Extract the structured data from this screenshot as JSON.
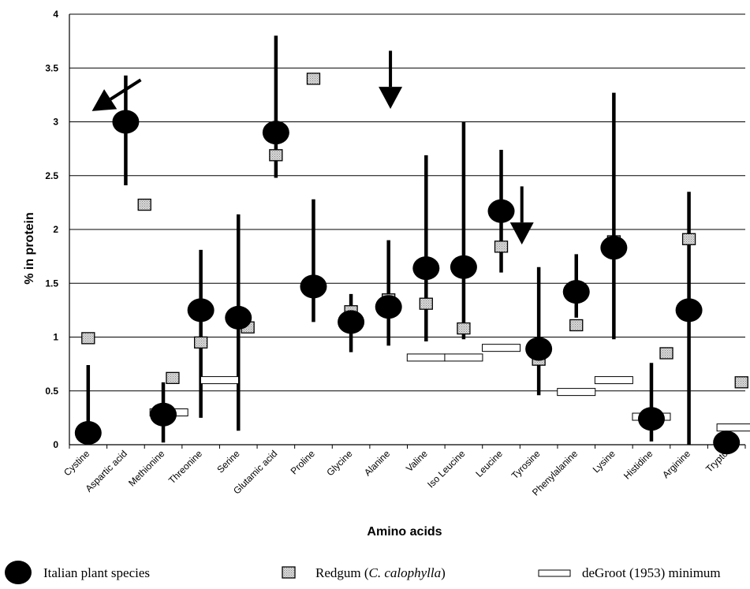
{
  "chart_data": {
    "type": "scatter",
    "xlabel": "Amino acids",
    "ylabel": "% in protein",
    "ylim": [
      0,
      4
    ],
    "yticks": [
      "0",
      "0.5",
      "1",
      "1.5",
      "2",
      "2.5",
      "3",
      "3.5",
      "4"
    ],
    "grid": "horizontal",
    "legend_position": "bottom",
    "categories": [
      "Cystine",
      "Aspartic acid",
      "Methionine",
      "Threonine",
      "Serine",
      "Glutamic acid",
      "Proline",
      "Glycine",
      "Alanine",
      "Valine",
      "Iso Leucine",
      "Leucine",
      "Tyrosine",
      "Phenylalanine",
      "Lysine",
      "Histidine",
      "Arginine",
      "Trypto"
    ],
    "series": [
      {
        "name": "Italian plant species",
        "marker": "filled-circle",
        "color": "#000000",
        "points": [
          {
            "category": "Cystine",
            "x_offset": 0.5,
            "y": 0.11,
            "low": 0.0,
            "high": 0.74
          },
          {
            "category": "Aspartic acid",
            "x_offset": 0.5,
            "y": 3.0,
            "low": 2.41,
            "high": 3.43
          },
          {
            "category": "Methionine",
            "x_offset": 0.5,
            "y": 0.28,
            "low": 0.02,
            "high": 0.58
          },
          {
            "category": "Threonine",
            "x_offset": 0.5,
            "y": 1.25,
            "low": 0.25,
            "high": 1.81
          },
          {
            "category": "Serine",
            "x_offset": 0.5,
            "y": 1.18,
            "low": 0.13,
            "high": 2.14
          },
          {
            "category": "Glutamic acid",
            "x_offset": 0.5,
            "y": 2.9,
            "low": 2.48,
            "high": 3.8
          },
          {
            "category": "Proline",
            "x_offset": 0.5,
            "y": 1.47,
            "low": 1.14,
            "high": 2.28
          },
          {
            "category": "Glycine",
            "x_offset": 0.5,
            "y": 1.14,
            "low": 0.86,
            "high": 1.4
          },
          {
            "category": "Alanine",
            "x_offset": 0.5,
            "y": 1.28,
            "low": 0.92,
            "high": 1.9
          },
          {
            "category": "Valine",
            "x_offset": 0.5,
            "y": 1.64,
            "low": 0.96,
            "high": 2.69
          },
          {
            "category": "Iso Leucine",
            "x_offset": 0.5,
            "y": 1.65,
            "low": 0.98,
            "high": 3.0
          },
          {
            "category": "Leucine",
            "x_offset": 0.5,
            "y": 2.17,
            "low": 1.6,
            "high": 2.74
          },
          {
            "category": "Tyrosine",
            "x_offset": 0.5,
            "y": 0.89,
            "low": 0.46,
            "high": 1.65
          },
          {
            "category": "Phenylalanine",
            "x_offset": 0.5,
            "y": 1.42,
            "low": 1.18,
            "high": 1.77
          },
          {
            "category": "Lysine",
            "x_offset": 0.5,
            "y": 1.83,
            "low": 0.98,
            "high": 3.27
          },
          {
            "category": "Histidine",
            "x_offset": 0.5,
            "y": 0.24,
            "low": 0.03,
            "high": 0.76
          },
          {
            "category": "Arginine",
            "x_offset": 0.5,
            "y": 1.25,
            "low": 0.0,
            "high": 2.35
          },
          {
            "category": "Trypto",
            "x_offset": 0.5,
            "y": 0.02,
            "low": null,
            "high": null
          }
        ]
      },
      {
        "name": "Redgum (C. calophylla)",
        "marker": "grey-square",
        "color": "#c8c8c8",
        "points": [
          {
            "category": "Cystine",
            "x_offset": 0.5,
            "y": 0.99
          },
          {
            "category": "Aspartic acid",
            "x_offset": 1.0,
            "y": 2.23
          },
          {
            "category": "Methionine",
            "x_offset": 0.75,
            "y": 0.62
          },
          {
            "category": "Threonine",
            "x_offset": 0.5,
            "y": 0.95
          },
          {
            "category": "Serine",
            "x_offset": 0.75,
            "y": 1.09
          },
          {
            "category": "Glutamic acid",
            "x_offset": 0.5,
            "y": 2.69
          },
          {
            "category": "Proline",
            "x_offset": 0.5,
            "y": 3.4
          },
          {
            "category": "Glycine",
            "x_offset": 0.5,
            "y": 1.24
          },
          {
            "category": "Alanine",
            "x_offset": 0.5,
            "y": 1.35
          },
          {
            "category": "Valine",
            "x_offset": 0.5,
            "y": 1.31
          },
          {
            "category": "Iso Leucine",
            "x_offset": 0.5,
            "y": 1.08
          },
          {
            "category": "Leucine",
            "x_offset": 0.5,
            "y": 1.84
          },
          {
            "category": "Tyrosine",
            "x_offset": 0.5,
            "y": 0.79
          },
          {
            "category": "Phenylalanine",
            "x_offset": 0.5,
            "y": 1.11
          },
          {
            "category": "Lysine",
            "x_offset": 0.5,
            "y": 1.89
          },
          {
            "category": "Histidine",
            "x_offset": 0.9,
            "y": 0.85
          },
          {
            "category": "Arginine",
            "x_offset": 0.5,
            "y": 1.91
          },
          {
            "category": "Trypto",
            "x_offset": 0.9,
            "y": 0.58
          }
        ]
      },
      {
        "name": "deGroot (1953) minimum",
        "marker": "white-bar",
        "color": "#ffffff",
        "points": [
          {
            "category": "Methionine",
            "x_offset": 0.65,
            "y": 0.3
          },
          {
            "category": "Threonine",
            "x_offset": 1.0,
            "y": 0.6
          },
          {
            "category": "Valine",
            "x_offset": 0.5,
            "y": 0.81
          },
          {
            "category": "Iso Leucine",
            "x_offset": 0.5,
            "y": 0.81
          },
          {
            "category": "Leucine",
            "x_offset": 0.5,
            "y": 0.9
          },
          {
            "category": "Phenylalanine",
            "x_offset": 0.5,
            "y": 0.49
          },
          {
            "category": "Lysine",
            "x_offset": 0.5,
            "y": 0.6
          },
          {
            "category": "Histidine",
            "x_offset": 0.5,
            "y": 0.26
          },
          {
            "category": "Trypto",
            "x_offset": 0.75,
            "y": 0.16
          }
        ]
      }
    ],
    "annotations": [
      {
        "type": "arrow",
        "from": {
          "category": "Aspartic acid",
          "x_offset": 0.9,
          "y": 3.39
        },
        "to": {
          "category": "Cystine",
          "x_offset": 0.6,
          "y": 3.1
        }
      },
      {
        "type": "arrow",
        "from": {
          "category": "Alanine",
          "x_offset": 0.55,
          "y": 3.66
        },
        "to": {
          "category": "Alanine",
          "x_offset": 0.55,
          "y": 3.12
        }
      },
      {
        "type": "arrow",
        "from": {
          "category": "Leucine",
          "x_offset": 1.05,
          "y": 2.4
        },
        "to": {
          "category": "Leucine",
          "x_offset": 1.05,
          "y": 1.86
        }
      }
    ],
    "legend": [
      {
        "marker": "filled-circle",
        "label": "Italian plant species"
      },
      {
        "marker": "grey-square",
        "label_parts": [
          {
            "text": "Redgum (",
            "italic": false
          },
          {
            "text": "C. calophylla",
            "italic": true
          },
          {
            "text": ")",
            "italic": false
          }
        ]
      },
      {
        "marker": "white-bar",
        "label": "deGroot (1953) minimum"
      }
    ]
  }
}
